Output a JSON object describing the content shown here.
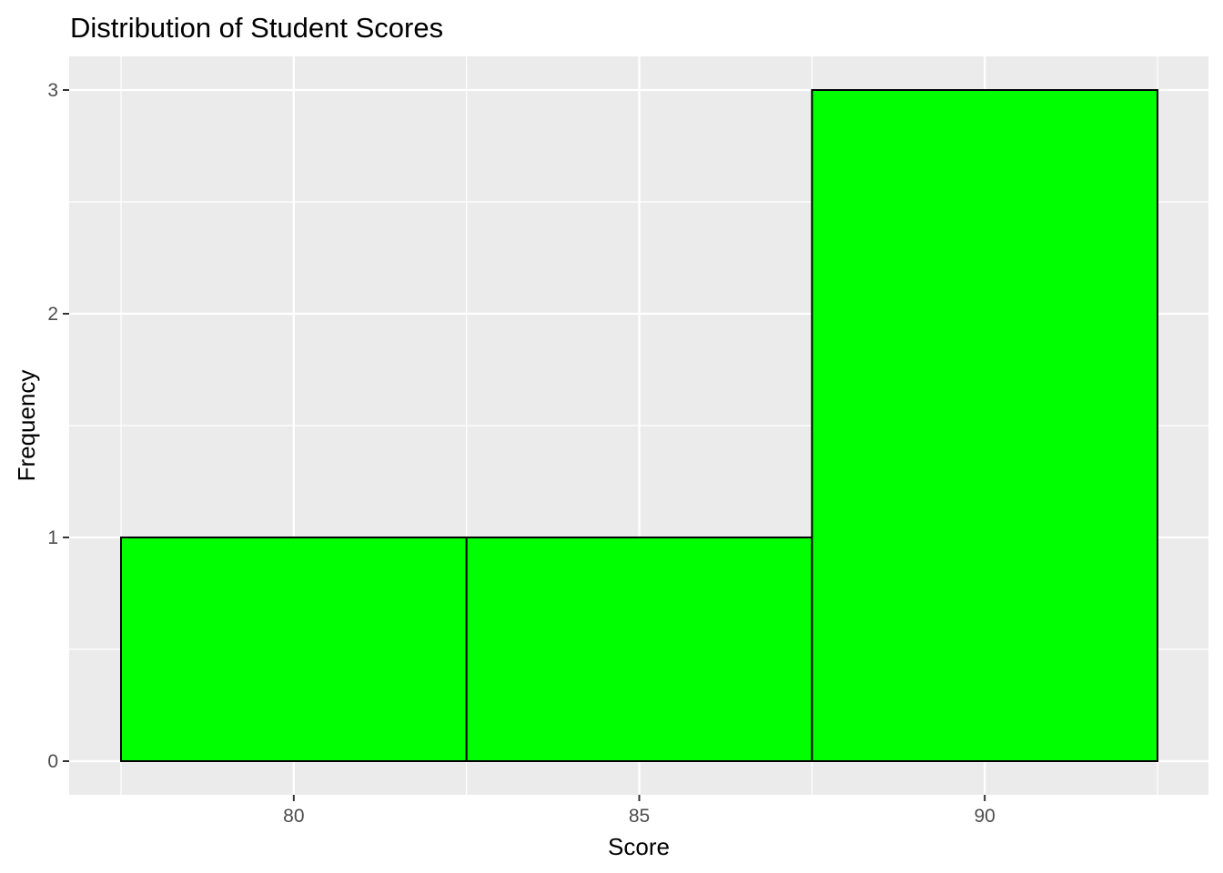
{
  "chart_data": {
    "type": "bar",
    "title": "Distribution of Student Scores",
    "xlabel": "Score",
    "ylabel": "Frequency",
    "bins": [
      {
        "x_start": 77.5,
        "x_end": 82.5,
        "count": 1
      },
      {
        "x_start": 82.5,
        "x_end": 87.5,
        "count": 1
      },
      {
        "x_start": 87.5,
        "x_end": 92.5,
        "count": 3
      }
    ],
    "xlim": [
      77.5,
      92.5
    ],
    "ylim": [
      0,
      3
    ],
    "x_ticks": [
      80,
      85,
      90
    ],
    "y_ticks": [
      0,
      1,
      2,
      3
    ],
    "grid": true,
    "legend": "none",
    "colors": {
      "bar_fill": "#00ff00",
      "bar_outline": "#000000",
      "panel_background": "#ebebeb",
      "grid_major": "#ffffff",
      "tick_text": "#4d4d4d"
    }
  }
}
